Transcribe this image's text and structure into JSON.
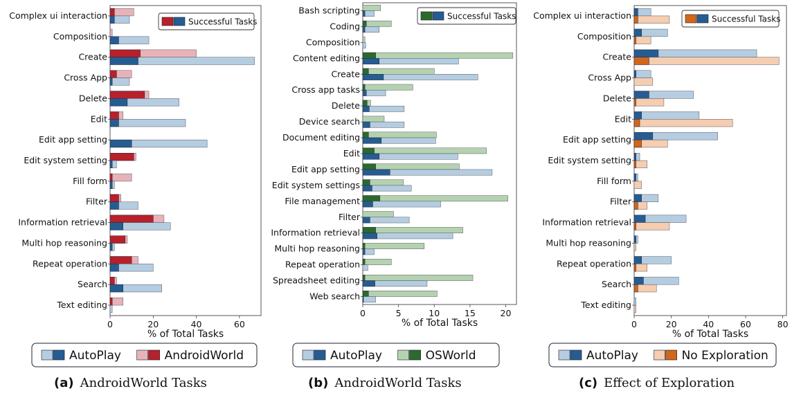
{
  "chart_data": [
    {
      "type": "bar",
      "orientation": "horizontal",
      "caption_label": "(a)",
      "caption_text": "AndroidWorld Tasks",
      "xlabel": "% of Total Tasks",
      "xlim": [
        0,
        70
      ],
      "xticks": [
        0,
        20,
        40,
        60
      ],
      "xtick_labels": [
        "0",
        "20",
        "40",
        "60"
      ],
      "legend_inside": "Successful Tasks",
      "categories": [
        "Complex ui interaction",
        "Composition",
        "Create",
        "Cross App",
        "Delete",
        "Edit",
        "Edit app setting",
        "Edit system setting",
        "Fill form",
        "Filter",
        "Information retrieval",
        "Multi hop reasoning",
        "Repeat operation",
        "Search",
        "Text editing"
      ],
      "series": [
        {
          "name": "AndroidWorld",
          "total": [
            11,
            1,
            40,
            10,
            18,
            6,
            0,
            12,
            10,
            5,
            25,
            8,
            13,
            3,
            6
          ],
          "successful": [
            2,
            0,
            14,
            3,
            16,
            4,
            0,
            11,
            1,
            4,
            20,
            7,
            10,
            2,
            1
          ],
          "light": "#e8b3b8",
          "dark": "#b8202a"
        },
        {
          "name": "AutoPlay",
          "total": [
            9,
            18,
            67,
            9,
            32,
            35,
            45,
            3,
            2,
            13,
            28,
            2,
            20,
            24,
            1
          ],
          "successful": [
            2,
            4,
            13,
            1,
            8,
            4,
            10,
            1,
            1,
            4,
            6,
            1,
            4,
            6,
            0
          ],
          "light": "#b5cde0",
          "dark": "#255d92"
        }
      ],
      "bottom_legend": [
        "AutoPlay",
        "AndroidWorld"
      ]
    },
    {
      "type": "bar",
      "orientation": "horizontal",
      "caption_label": "(b)",
      "caption_text": "AndroidWorld Tasks",
      "xlabel": "% of Total Tasks",
      "xlim": [
        0,
        21.5
      ],
      "xticks": [
        0,
        5,
        10,
        15,
        20
      ],
      "xtick_labels": [
        "0",
        "5",
        "10",
        "15",
        "20"
      ],
      "legend_inside": "Successful Tasks",
      "categories": [
        "Bash scripting",
        "Coding",
        "Composition",
        "Content editing",
        "Create",
        "Cross app tasks",
        "Delete",
        "Device search",
        "Document editing",
        "Edit",
        "Edit app setting",
        "Edit system settings",
        "File management",
        "Filter",
        "Information retrieval",
        "Multi hop reasoning",
        "Repeat operation",
        "Spreadsheet editing",
        "Web search"
      ],
      "series": [
        {
          "name": "OSWorld",
          "total": [
            2.5,
            4,
            0.3,
            21,
            10,
            7,
            1.1,
            3,
            10.3,
            17.3,
            13.5,
            5.7,
            20.3,
            4.3,
            14,
            8.6,
            4,
            15.4,
            10.4
          ],
          "successful": [
            0,
            0.5,
            0,
            1.8,
            0.8,
            0.3,
            0.6,
            0,
            0.8,
            1.6,
            1.8,
            1,
            2.4,
            0,
            1.8,
            0.3,
            0.3,
            0.3,
            0.8
          ],
          "light": "#b5d2b0",
          "dark": "#2b6a2c"
        },
        {
          "name": "AutoPlay",
          "total": [
            1.6,
            2.3,
            0.4,
            13.4,
            16.1,
            3.2,
            5.8,
            5.8,
            10.2,
            13.3,
            18.1,
            6.8,
            10.9,
            6.5,
            12.6,
            1.6,
            0.7,
            9,
            1.8
          ],
          "successful": [
            0.3,
            0.3,
            0,
            2.3,
            2.9,
            0.5,
            0.9,
            1,
            2.6,
            2.3,
            3.8,
            1.3,
            1.4,
            1,
            2,
            0.3,
            0,
            1.7,
            0.1
          ],
          "light": "#b5cde0",
          "dark": "#255d92"
        }
      ],
      "bottom_legend": [
        "AutoPlay",
        "OSWorld"
      ]
    },
    {
      "type": "bar",
      "orientation": "horizontal",
      "caption_label": "(c)",
      "caption_text": "Effect of Exploration",
      "xlabel": "% of Total Tasks",
      "xlim": [
        0,
        82
      ],
      "xticks": [
        0,
        20,
        40,
        60,
        80
      ],
      "xtick_labels": [
        "0",
        "20",
        "40",
        "60",
        "80"
      ],
      "legend_inside": "Successful Tasks",
      "categories": [
        "Complex ui interaction",
        "Composition",
        "Create",
        "Cross App",
        "Delete",
        "Edit",
        "Edit app setting",
        "Edit system setting",
        "Fill form",
        "Filter",
        "Information retrieval",
        "Multi hop reasoning",
        "Repeat operation",
        "Search",
        "Text editing"
      ],
      "series": [
        {
          "name": "AutoPlay",
          "total": [
            9,
            18,
            66,
            9,
            32,
            35,
            45,
            3,
            2,
            13,
            28,
            2,
            20,
            24,
            1
          ],
          "successful": [
            2,
            4,
            13,
            1,
            8,
            4,
            10,
            1,
            1,
            4,
            6,
            1,
            4,
            5,
            0
          ],
          "light": "#b5cde0",
          "dark": "#255d92"
        },
        {
          "name": "No Exploration",
          "total": [
            19,
            9,
            78,
            10,
            16,
            53,
            18,
            7,
            4,
            7,
            19,
            1,
            7,
            12,
            1
          ],
          "successful": [
            2,
            1,
            8,
            0,
            1,
            3,
            4,
            1,
            0,
            2,
            1,
            0,
            1,
            2,
            0
          ],
          "light": "#f5cdb0",
          "dark": "#d0671b"
        }
      ],
      "bottom_legend": [
        "AutoPlay",
        "No Exploration"
      ]
    }
  ]
}
